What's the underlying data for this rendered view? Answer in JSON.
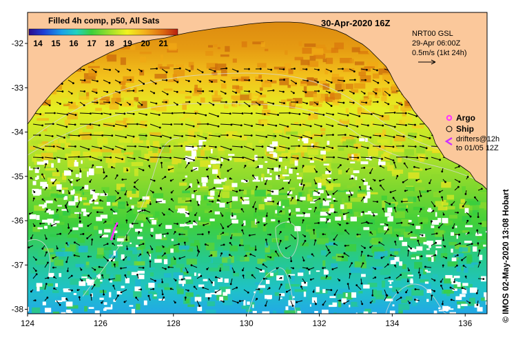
{
  "map": {
    "title": "Filled 4h comp, p50, All Sats",
    "date": "30-Apr-2020 16Z",
    "current_info": [
      "NRT00 GSL",
      "29-Apr 06:00Z",
      "0.5m/s (1kt 24h)"
    ],
    "legend": {
      "argo": "Argo",
      "ship": "Ship",
      "drifters_line1": "drifters@12h",
      "drifters_line2": "to 01/05 12Z",
      "argo_color": "#ff33ff",
      "drifter_color": "#cc33ff"
    },
    "credit": "© IMOS 02-May-2020 13:08 Hobart",
    "colorbar": {
      "labels": [
        "14",
        "15",
        "16",
        "17",
        "18",
        "19",
        "20",
        "21"
      ],
      "min": 13.5,
      "max": 21.8
    },
    "xaxis": {
      "labels": [
        "124",
        "126",
        "128",
        "130",
        "132",
        "134",
        "136"
      ],
      "values": [
        124,
        126,
        128,
        130,
        132,
        134,
        136
      ],
      "range": [
        124,
        136.6
      ]
    },
    "yaxis": {
      "labels": [
        "-32",
        "-33",
        "-34",
        "-35",
        "-36",
        "-37",
        "-38"
      ],
      "values": [
        -32,
        -33,
        -34,
        -35,
        -36,
        -37,
        -38
      ],
      "range": [
        -38.1,
        -31.3
      ]
    },
    "colors": {
      "land": "#fbc89b",
      "cloud": "#ffffff"
    }
  }
}
